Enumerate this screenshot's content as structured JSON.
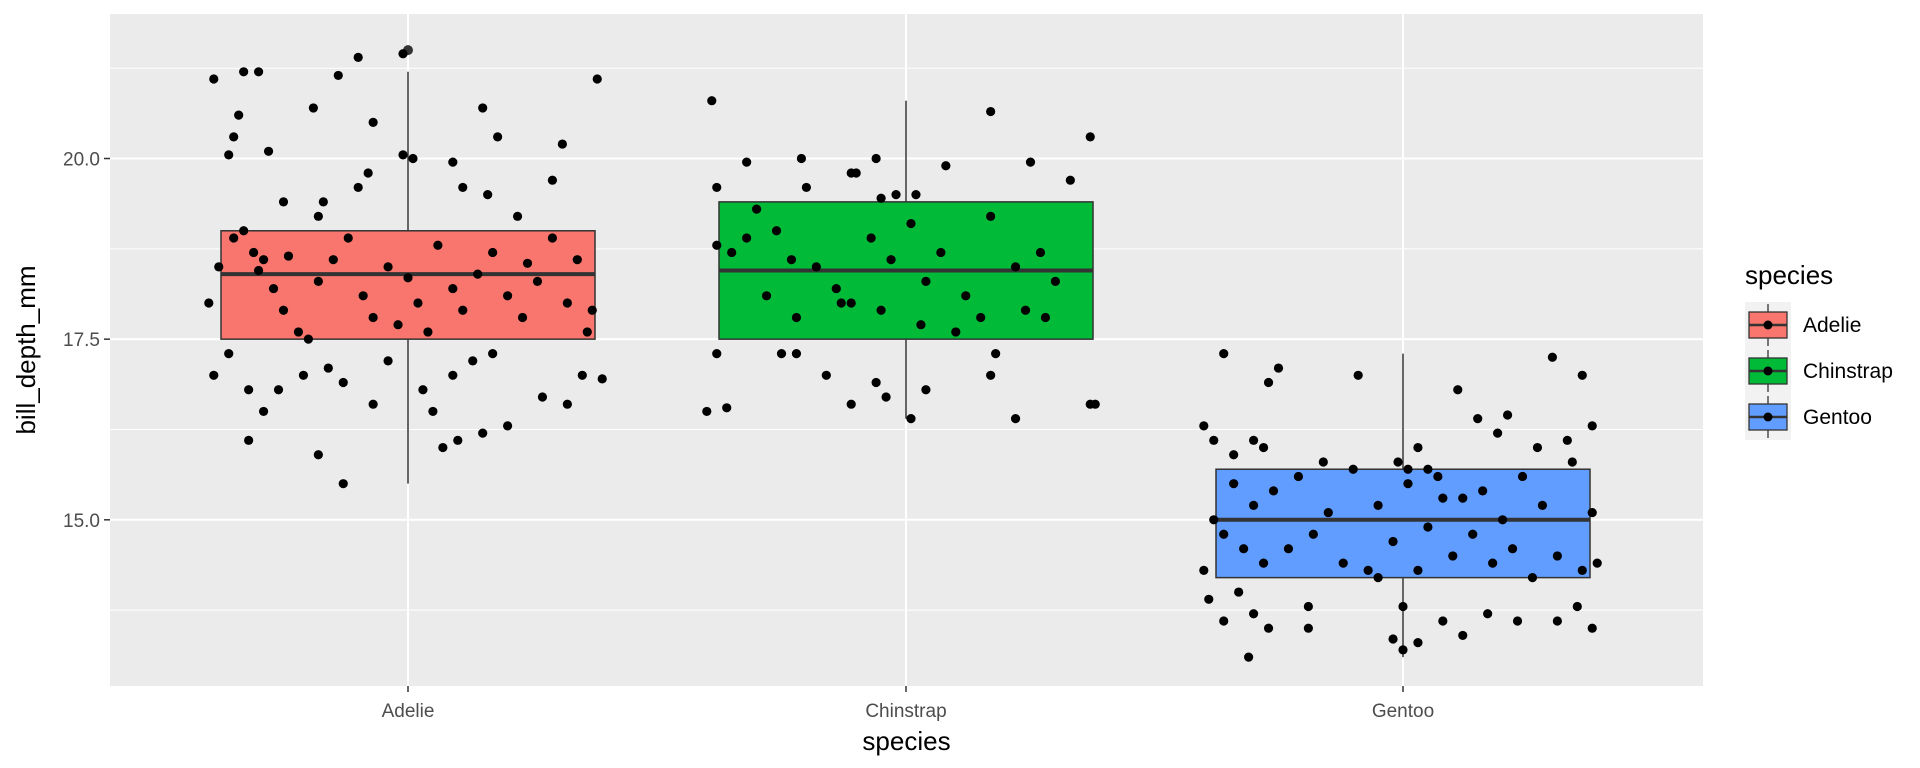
{
  "chart_data": {
    "type": "box",
    "title": "",
    "xlabel": "species",
    "ylabel": "bill_depth_mm",
    "categories": [
      "Adelie",
      "Chinstrap",
      "Gentoo"
    ],
    "ylim": [
      12.7,
      22.0
    ],
    "yticks": [
      15.0,
      17.5,
      20.0
    ],
    "ytick_labels": [
      "15.0",
      "17.5",
      "20.0"
    ],
    "grid": true,
    "panel_background": "#ebebeb",
    "legend": {
      "title": "species",
      "position": "right",
      "entries": [
        {
          "label": "Adelie",
          "color": "#F8766D"
        },
        {
          "label": "Chinstrap",
          "color": "#00BA38"
        },
        {
          "label": "Gentoo",
          "color": "#619CFF"
        }
      ]
    },
    "boxes": [
      {
        "category": "Adelie",
        "color": "#F8766D",
        "q1": 17.5,
        "median": 18.4,
        "q3": 19.0,
        "whisker_low": 15.5,
        "whisker_high": 21.2,
        "outliers": [
          21.5
        ]
      },
      {
        "category": "Chinstrap",
        "color": "#00BA38",
        "q1": 17.5,
        "median": 18.45,
        "q3": 19.4,
        "whisker_low": 16.4,
        "whisker_high": 20.8,
        "outliers": []
      },
      {
        "category": "Gentoo",
        "color": "#619CFF",
        "q1": 14.2,
        "median": 15.0,
        "q3": 15.7,
        "whisker_low": 13.1,
        "whisker_high": 17.3,
        "outliers": []
      }
    ],
    "jitter_points": {
      "Adelie": [
        [
          -0.39,
          21.1
        ],
        [
          -0.33,
          21.2
        ],
        [
          -0.3,
          21.2
        ],
        [
          -0.1,
          21.4
        ],
        [
          -0.01,
          21.45
        ],
        [
          0.38,
          21.1
        ],
        [
          -0.36,
          20.05
        ],
        [
          -0.35,
          20.3
        ],
        [
          -0.34,
          20.6
        ],
        [
          -0.28,
          20.1
        ],
        [
          -0.19,
          20.7
        ],
        [
          -0.14,
          21.15
        ],
        [
          -0.07,
          20.5
        ],
        [
          -0.01,
          20.05
        ],
        [
          0.01,
          20.0
        ],
        [
          0.09,
          19.95
        ],
        [
          0.15,
          20.7
        ],
        [
          0.18,
          20.3
        ],
        [
          0.31,
          20.2
        ],
        [
          -0.25,
          19.4
        ],
        [
          -0.18,
          19.2
        ],
        [
          -0.17,
          19.4
        ],
        [
          -0.1,
          19.6
        ],
        [
          -0.08,
          19.8
        ],
        [
          0.11,
          19.6
        ],
        [
          0.16,
          19.5
        ],
        [
          0.22,
          19.2
        ],
        [
          0.29,
          19.7
        ],
        [
          -0.4,
          18.0
        ],
        [
          -0.38,
          18.5
        ],
        [
          -0.35,
          18.9
        ],
        [
          -0.33,
          19.0
        ],
        [
          -0.31,
          18.7
        ],
        [
          -0.29,
          18.6
        ],
        [
          -0.27,
          18.2
        ],
        [
          -0.25,
          17.9
        ],
        [
          -0.22,
          17.6
        ],
        [
          -0.2,
          17.5
        ],
        [
          -0.18,
          18.3
        ],
        [
          -0.15,
          18.6
        ],
        [
          -0.12,
          18.9
        ],
        [
          -0.09,
          18.1
        ],
        [
          -0.07,
          17.8
        ],
        [
          -0.04,
          18.5
        ],
        [
          -0.02,
          17.7
        ],
        [
          0.02,
          18.0
        ],
        [
          0.04,
          17.6
        ],
        [
          0.06,
          18.8
        ],
        [
          0.09,
          18.2
        ],
        [
          0.11,
          17.9
        ],
        [
          0.14,
          18.4
        ],
        [
          0.17,
          18.7
        ],
        [
          0.2,
          18.1
        ],
        [
          0.23,
          17.8
        ],
        [
          0.26,
          18.3
        ],
        [
          0.29,
          18.9
        ],
        [
          0.32,
          18.0
        ],
        [
          0.34,
          18.6
        ],
        [
          0.36,
          17.6
        ],
        [
          0.37,
          17.9
        ],
        [
          -0.39,
          17.0
        ],
        [
          -0.36,
          17.3
        ],
        [
          -0.32,
          16.8
        ],
        [
          -0.29,
          16.5
        ],
        [
          -0.26,
          16.8
        ],
        [
          -0.21,
          17.0
        ],
        [
          -0.16,
          17.1
        ],
        [
          -0.13,
          16.9
        ],
        [
          -0.07,
          16.6
        ],
        [
          -0.04,
          17.2
        ],
        [
          0.03,
          16.8
        ],
        [
          0.05,
          16.5
        ],
        [
          0.07,
          16.0
        ],
        [
          0.09,
          17.0
        ],
        [
          0.13,
          17.2
        ],
        [
          0.17,
          17.3
        ],
        [
          0.2,
          16.3
        ],
        [
          0.27,
          16.7
        ],
        [
          0.32,
          16.6
        ],
        [
          0.35,
          17.0
        ],
        [
          0.39,
          16.95
        ],
        [
          -0.32,
          16.1
        ],
        [
          -0.18,
          15.9
        ],
        [
          -0.13,
          15.5
        ],
        [
          0.1,
          16.1
        ],
        [
          0.15,
          16.2
        ],
        [
          -0.3,
          18.45
        ],
        [
          -0.24,
          18.65
        ],
        [
          0.0,
          18.35
        ],
        [
          0.24,
          18.55
        ]
      ],
      "Chinstrap": [
        [
          -0.39,
          20.8
        ],
        [
          -0.32,
          19.95
        ],
        [
          -0.21,
          20.0
        ],
        [
          -0.1,
          19.8
        ],
        [
          -0.06,
          20.0
        ],
        [
          0.17,
          20.65
        ],
        [
          0.25,
          19.95
        ],
        [
          0.37,
          20.3
        ],
        [
          -0.38,
          19.6
        ],
        [
          -0.3,
          19.3
        ],
        [
          -0.2,
          19.6
        ],
        [
          -0.11,
          19.8
        ],
        [
          -0.05,
          19.45
        ],
        [
          -0.02,
          19.5
        ],
        [
          0.02,
          19.5
        ],
        [
          0.08,
          19.9
        ],
        [
          0.33,
          19.7
        ],
        [
          -0.38,
          18.8
        ],
        [
          -0.35,
          18.7
        ],
        [
          -0.32,
          18.9
        ],
        [
          -0.26,
          19.0
        ],
        [
          -0.23,
          18.6
        ],
        [
          -0.18,
          18.5
        ],
        [
          -0.14,
          18.2
        ],
        [
          -0.11,
          18.0
        ],
        [
          -0.07,
          18.9
        ],
        [
          -0.03,
          18.6
        ],
        [
          0.01,
          19.1
        ],
        [
          0.04,
          18.3
        ],
        [
          0.07,
          18.7
        ],
        [
          0.12,
          18.1
        ],
        [
          0.17,
          19.2
        ],
        [
          0.22,
          18.5
        ],
        [
          0.27,
          18.7
        ],
        [
          0.3,
          18.3
        ],
        [
          -0.28,
          18.1
        ],
        [
          -0.22,
          17.8
        ],
        [
          -0.13,
          18.0
        ],
        [
          -0.05,
          17.9
        ],
        [
          0.03,
          17.7
        ],
        [
          0.1,
          17.6
        ],
        [
          0.15,
          17.8
        ],
        [
          0.24,
          17.9
        ],
        [
          0.28,
          17.8
        ],
        [
          -0.38,
          17.3
        ],
        [
          -0.25,
          17.3
        ],
        [
          -0.22,
          17.3
        ],
        [
          -0.16,
          17.0
        ],
        [
          -0.11,
          16.6
        ],
        [
          -0.06,
          16.9
        ],
        [
          -0.04,
          16.7
        ],
        [
          0.01,
          16.4
        ],
        [
          0.04,
          16.8
        ],
        [
          0.17,
          17.0
        ],
        [
          0.18,
          17.3
        ],
        [
          0.22,
          16.4
        ],
        [
          0.37,
          16.6
        ],
        [
          0.38,
          16.6
        ],
        [
          -0.4,
          16.5
        ],
        [
          -0.36,
          16.55
        ]
      ],
      "Gentoo": [
        [
          -0.4,
          16.3
        ],
        [
          -0.38,
          16.1
        ],
        [
          -0.36,
          17.3
        ],
        [
          -0.34,
          15.9
        ],
        [
          -0.3,
          16.1
        ],
        [
          -0.28,
          16.0
        ],
        [
          -0.27,
          16.9
        ],
        [
          -0.25,
          17.1
        ],
        [
          -0.16,
          15.8
        ],
        [
          -0.09,
          17.0
        ],
        [
          -0.01,
          15.8
        ],
        [
          0.01,
          15.7
        ],
        [
          0.03,
          16.0
        ],
        [
          0.05,
          15.7
        ],
        [
          0.08,
          15.3
        ],
        [
          0.11,
          16.8
        ],
        [
          0.15,
          16.4
        ],
        [
          0.19,
          16.2
        ],
        [
          0.21,
          16.45
        ],
        [
          0.27,
          16.0
        ],
        [
          0.3,
          17.25
        ],
        [
          0.33,
          16.1
        ],
        [
          0.36,
          17.0
        ],
        [
          0.38,
          16.3
        ],
        [
          -0.38,
          15.0
        ],
        [
          -0.36,
          14.8
        ],
        [
          -0.34,
          15.5
        ],
        [
          -0.32,
          14.6
        ],
        [
          -0.3,
          15.2
        ],
        [
          -0.28,
          14.4
        ],
        [
          -0.26,
          15.4
        ],
        [
          -0.23,
          14.6
        ],
        [
          -0.21,
          15.6
        ],
        [
          -0.18,
          14.8
        ],
        [
          -0.15,
          15.1
        ],
        [
          -0.12,
          14.4
        ],
        [
          -0.1,
          15.7
        ],
        [
          -0.07,
          14.3
        ],
        [
          -0.05,
          15.2
        ],
        [
          -0.02,
          14.7
        ],
        [
          0.01,
          15.5
        ],
        [
          0.03,
          14.3
        ],
        [
          0.05,
          14.9
        ],
        [
          0.07,
          15.6
        ],
        [
          0.1,
          14.5
        ],
        [
          0.12,
          15.3
        ],
        [
          0.14,
          14.8
        ],
        [
          0.16,
          15.4
        ],
        [
          0.18,
          14.4
        ],
        [
          0.2,
          15.0
        ],
        [
          0.22,
          14.6
        ],
        [
          0.24,
          15.6
        ],
        [
          0.26,
          14.2
        ],
        [
          0.28,
          15.2
        ],
        [
          0.31,
          14.5
        ],
        [
          0.34,
          15.8
        ],
        [
          0.36,
          14.3
        ],
        [
          0.38,
          15.1
        ],
        [
          -0.39,
          13.9
        ],
        [
          -0.36,
          13.6
        ],
        [
          -0.33,
          14.0
        ],
        [
          -0.3,
          13.7
        ],
        [
          -0.27,
          13.5
        ],
        [
          -0.19,
          13.8
        ],
        [
          -0.05,
          14.2
        ],
        [
          0.0,
          13.8
        ],
        [
          0.03,
          13.3
        ],
        [
          0.08,
          13.6
        ],
        [
          0.12,
          13.4
        ],
        [
          0.17,
          13.7
        ],
        [
          0.23,
          13.6
        ],
        [
          0.31,
          13.6
        ],
        [
          0.35,
          13.8
        ],
        [
          0.38,
          13.5
        ],
        [
          -0.31,
          13.1
        ],
        [
          -0.19,
          13.5
        ],
        [
          -0.02,
          13.35
        ],
        [
          0.0,
          13.2
        ],
        [
          -0.4,
          14.3
        ],
        [
          0.39,
          14.4
        ]
      ]
    }
  }
}
